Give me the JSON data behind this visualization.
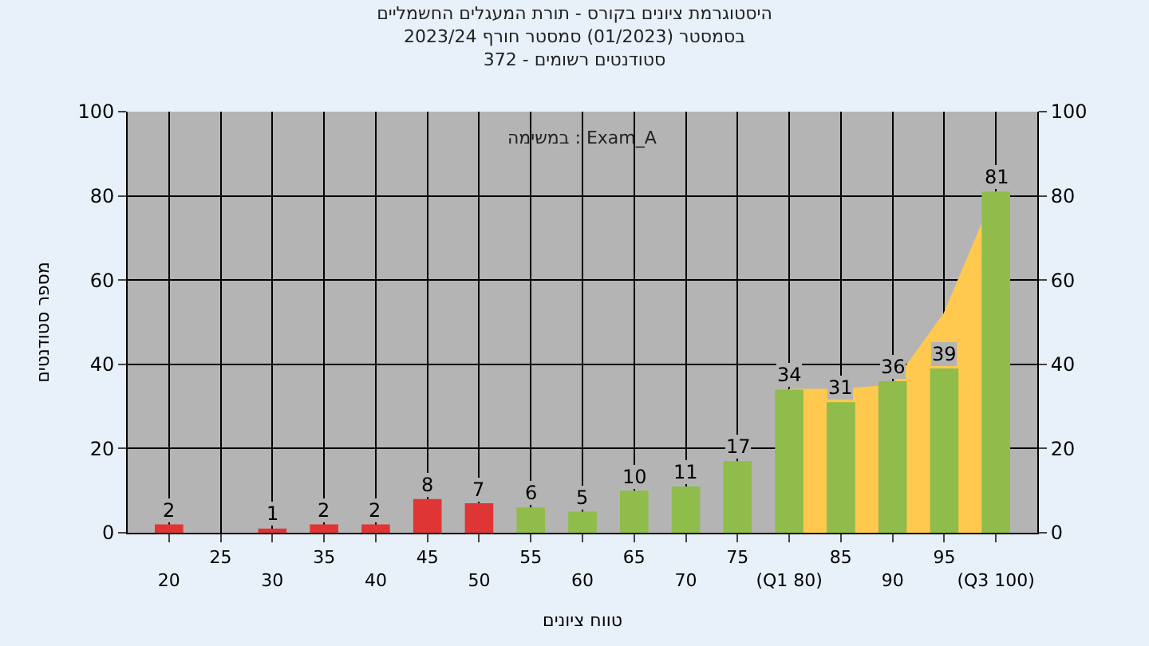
{
  "chart_data": {
    "type": "bar",
    "title": "היסטוגרמת ציונים בקורס - תורת המעגלים החשמליים",
    "subtitle": "בסמסטר (01/2023) סמסטר חורף 2023/24\nסטודנטים רשומים - 372",
    "xlabel": "טווח ציונים",
    "ylabel": "מספר סטודנטים",
    "categories": [
      "20",
      "25",
      "30",
      "35",
      "40",
      "45",
      "50",
      "55",
      "60",
      "65",
      "70",
      "75",
      "(Q1 80)",
      "85",
      "90",
      "95",
      "(Q3 100)"
    ],
    "series": [
      {
        "type": "area",
        "color": "#ffc94f",
        "values": [
          null,
          null,
          null,
          null,
          null,
          null,
          null,
          null,
          null,
          null,
          null,
          null,
          34,
          34,
          35,
          52,
          81
        ]
      },
      {
        "colors": [
          "#e03535",
          "#e03535",
          "#e03535",
          "#e03535",
          "#e03535",
          "#e03535",
          "#e03535",
          "#8fbc4a",
          "#8fbc4a",
          "#8fbc4a",
          "#8fbc4a",
          "#8fbc4a",
          "#8fbc4a",
          "#8fbc4a",
          "#8fbc4a",
          "#8fbc4a",
          "#8fbc4a"
        ],
        "values": [
          2,
          0,
          1,
          2,
          2,
          8,
          7,
          6,
          5,
          10,
          11,
          17,
          34,
          31,
          36,
          39,
          81
        ],
        "value_labels": [
          "2",
          null,
          "1",
          "2",
          "2",
          "8",
          "7",
          "6",
          "5",
          "10",
          "11",
          "17",
          "34",
          "31",
          "36",
          "39",
          "81"
        ]
      }
    ],
    "ylim": [
      0,
      100
    ],
    "yticks": [
      0,
      20,
      40,
      60,
      80,
      100
    ],
    "y2lim": [
      0,
      100
    ],
    "y2ticks": [
      0,
      20,
      40,
      60,
      80,
      100
    ],
    "annotations": [
      "במשימה : Exam_A"
    ],
    "grid": true
  }
}
